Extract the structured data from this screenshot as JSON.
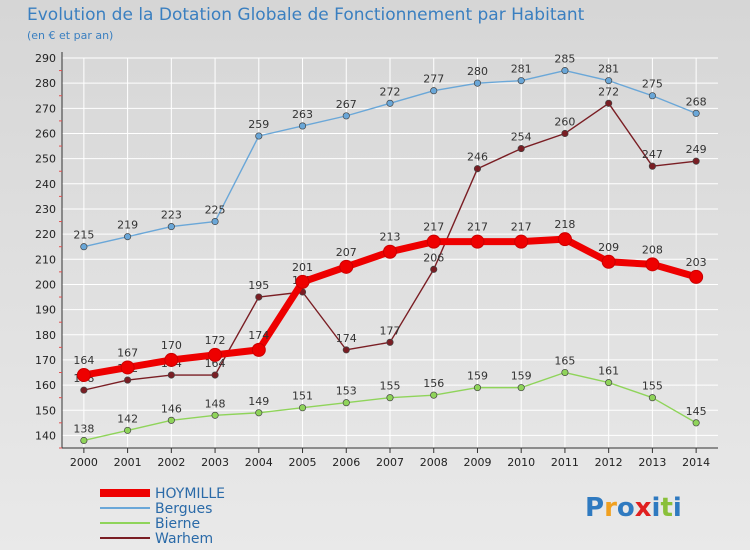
{
  "chart_data": {
    "type": "line",
    "title": "Evolution de la Dotation Globale de Fonctionnement par Habitant",
    "subtitle": "(en € et par an)",
    "xlabel": "",
    "ylabel": "",
    "ylim": [
      135,
      290
    ],
    "yticks": [
      140,
      150,
      160,
      170,
      180,
      190,
      200,
      210,
      220,
      230,
      240,
      250,
      260,
      270,
      280,
      290
    ],
    "x": [
      "2000",
      "2001",
      "2002",
      "2003",
      "2004",
      "2005",
      "2006",
      "2007",
      "2008",
      "2009",
      "2010",
      "2011",
      "2012",
      "2013",
      "2014"
    ],
    "legend_position": "bottom-left",
    "series": [
      {
        "name": "Bergues",
        "color": "#6aa7d8",
        "values": [
          215,
          219,
          223,
          225,
          259,
          263,
          267,
          272,
          277,
          280,
          281,
          285,
          281,
          275,
          268
        ]
      },
      {
        "name": "Bierne",
        "color": "#8fd45a",
        "values": [
          138,
          142,
          146,
          148,
          149,
          151,
          153,
          155,
          156,
          159,
          159,
          165,
          161,
          155,
          145
        ]
      },
      {
        "name": "Warhem",
        "color": "#7a1e24",
        "values": [
          158,
          162,
          164,
          164,
          195,
          197,
          174,
          177,
          206,
          246,
          254,
          260,
          272,
          247,
          249
        ]
      },
      {
        "name": "HOYMILLE",
        "color": "#ee0000",
        "values": [
          164,
          167,
          170,
          172,
          174,
          201,
          207,
          213,
          217,
          217,
          217,
          218,
          209,
          208,
          203
        ]
      }
    ],
    "legend": [
      "HOYMILLE",
      "Bergues",
      "Bierne",
      "Warhem"
    ]
  },
  "logo": {
    "text": "Proxiti"
  }
}
